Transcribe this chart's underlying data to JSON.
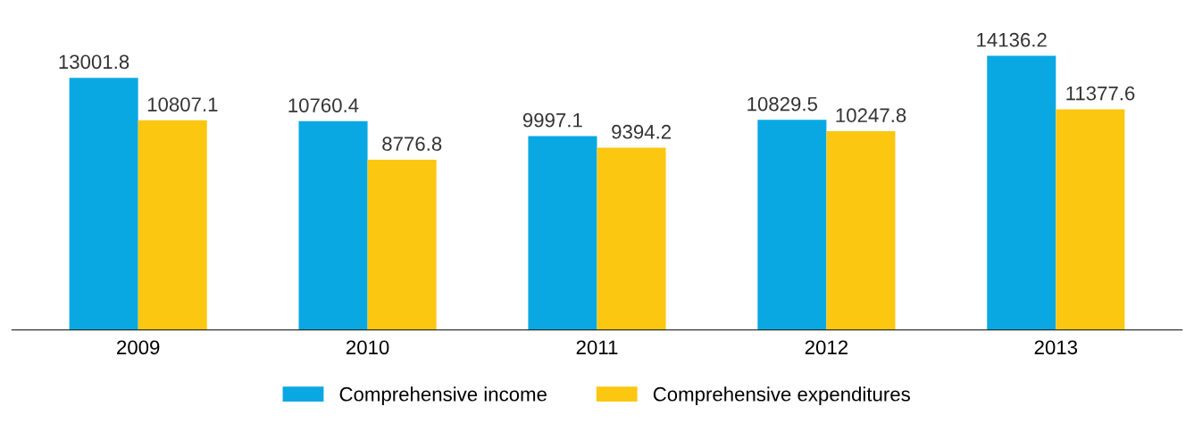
{
  "chart_data": {
    "type": "bar",
    "categories": [
      "2009",
      "2010",
      "2011",
      "2012",
      "2013"
    ],
    "series": [
      {
        "name": "Comprehensive income",
        "color": "#0aa8e2",
        "values": [
          13001.8,
          10760.4,
          9997.1,
          10829.5,
          14136.2
        ]
      },
      {
        "name": "Comprehensive expenditures",
        "color": "#fcc710",
        "values": [
          10807.1,
          8776.8,
          9394.2,
          10247.8,
          11377.6
        ]
      }
    ],
    "data_labels": true,
    "legend": "bottom",
    "grid": false
  }
}
